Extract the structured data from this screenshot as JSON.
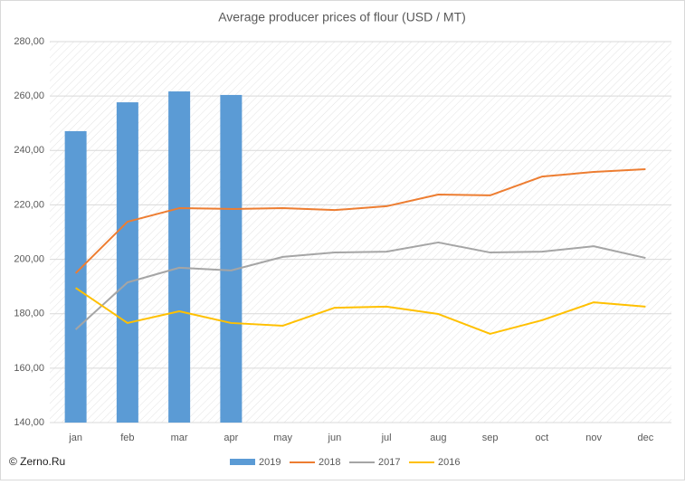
{
  "chart_data": {
    "type": "combo",
    "title": "Average producer prices of flour (USD / MT)",
    "categories": [
      "jan",
      "feb",
      "mar",
      "apr",
      "may",
      "jun",
      "jul",
      "aug",
      "sep",
      "oct",
      "nov",
      "dec"
    ],
    "series": [
      {
        "name": "2019",
        "type": "bar",
        "color": "#5b9bd5",
        "values": [
          247.1,
          257.7,
          261.7,
          260.4,
          null,
          null,
          null,
          null,
          null,
          null,
          null,
          null
        ]
      },
      {
        "name": "2018",
        "type": "line",
        "color": "#ed7d31",
        "values": [
          194.9,
          213.8,
          218.8,
          218.5,
          218.8,
          218.1,
          219.5,
          223.8,
          223.5,
          230.4,
          232.1,
          233.1
        ]
      },
      {
        "name": "2017",
        "type": "line",
        "color": "#a5a5a5",
        "values": [
          174.2,
          191.5,
          196.9,
          195.9,
          200.9,
          202.5,
          202.8,
          206.2,
          202.5,
          202.8,
          204.8,
          200.5
        ]
      },
      {
        "name": "2016",
        "type": "line",
        "color": "#ffc000",
        "values": [
          189.5,
          176.6,
          180.9,
          176.6,
          175.6,
          182.2,
          182.6,
          179.9,
          172.6,
          177.6,
          184.2,
          182.6
        ]
      }
    ],
    "ylim": [
      140,
      280
    ],
    "yticks": [
      {
        "value": 140,
        "label": "140,00"
      },
      {
        "value": 160,
        "label": "160,00"
      },
      {
        "value": 180,
        "label": "180,00"
      },
      {
        "value": 200,
        "label": "200,00"
      },
      {
        "value": 220,
        "label": "220,00"
      },
      {
        "value": 240,
        "label": "240,00"
      },
      {
        "value": 260,
        "label": "260,00"
      },
      {
        "value": 280,
        "label": "280,00"
      }
    ],
    "grid": true,
    "legend": "bottom",
    "source": "© Zerno.Ru"
  }
}
